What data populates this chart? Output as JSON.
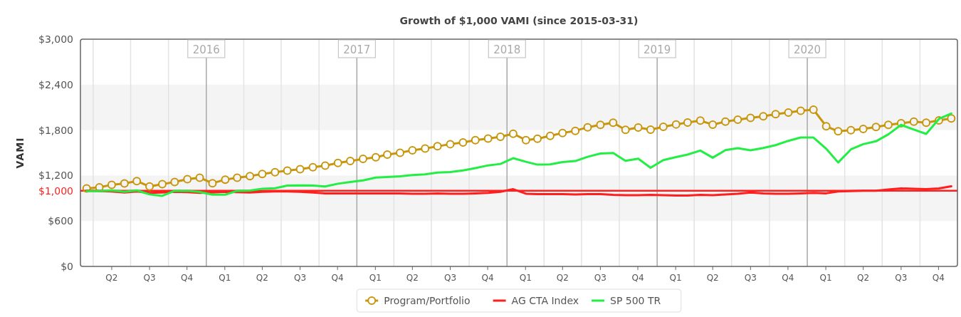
{
  "chart_data": {
    "type": "line",
    "title": "Growth of $1,000 VAMI (since 2015-03-31)",
    "ylabel": "VAMI",
    "x": [
      "2015-03-16",
      "2015-04-16",
      "2015-05-16",
      "2015-06-16",
      "2015-07-16",
      "2015-08-16",
      "2015-09-16",
      "2015-10-16",
      "2015-11-16",
      "2015-12-16",
      "2016-01-16",
      "2016-02-16",
      "2016-03-16",
      "2016-04-16",
      "2016-05-16",
      "2016-06-16",
      "2016-07-16",
      "2016-08-16",
      "2016-09-16",
      "2016-10-16",
      "2016-11-16",
      "2016-12-16",
      "2017-01-16",
      "2017-02-16",
      "2017-03-16",
      "2017-04-16",
      "2017-05-16",
      "2017-06-16",
      "2017-07-16",
      "2017-08-16",
      "2017-09-16",
      "2017-10-16",
      "2017-11-16",
      "2017-12-16",
      "2018-01-16",
      "2018-02-16",
      "2018-03-16",
      "2018-04-16",
      "2018-05-16",
      "2018-06-16",
      "2018-07-16",
      "2018-08-16",
      "2018-09-16",
      "2018-10-16",
      "2018-11-16",
      "2018-12-16",
      "2019-01-16",
      "2019-02-16",
      "2019-03-16",
      "2019-04-16",
      "2019-05-16",
      "2019-06-16",
      "2019-07-16",
      "2019-08-16",
      "2019-09-16",
      "2019-10-16",
      "2019-11-16",
      "2019-12-16",
      "2020-01-16",
      "2020-02-16",
      "2020-03-16",
      "2020-04-16",
      "2020-05-16",
      "2020-06-16",
      "2020-07-16",
      "2020-08-16",
      "2020-09-16",
      "2020-10-16",
      "2020-11-16",
      "2020-12-16"
    ],
    "series": [
      {
        "name": "Program/Portfolio",
        "color": "#c8960c",
        "marker": "circle",
        "values": [
          1030,
          1045,
          1077,
          1096,
          1127,
          1055,
          1086,
          1114,
          1152,
          1171,
          1099,
          1146,
          1171,
          1193,
          1221,
          1243,
          1265,
          1284,
          1309,
          1331,
          1366,
          1391,
          1419,
          1441,
          1476,
          1501,
          1532,
          1557,
          1586,
          1614,
          1636,
          1667,
          1689,
          1711,
          1752,
          1667,
          1686,
          1724,
          1762,
          1790,
          1837,
          1869,
          1897,
          1803,
          1834,
          1806,
          1843,
          1875,
          1900,
          1925,
          1872,
          1912,
          1938,
          1960,
          1982,
          2010,
          2032,
          2054,
          2070,
          1850,
          1784,
          1799,
          1815,
          1840,
          1869,
          1891,
          1912,
          1897,
          1928,
          1953
        ]
      },
      {
        "name": "AG CTA Index",
        "color": "#ff1f1f",
        "marker": "none",
        "values": [
          1000,
          995,
          990,
          975,
          990,
          970,
          975,
          985,
          980,
          970,
          975,
          985,
          980,
          975,
          985,
          990,
          990,
          985,
          975,
          965,
          965,
          965,
          965,
          965,
          965,
          965,
          960,
          960,
          965,
          960,
          960,
          965,
          970,
          985,
          1020,
          960,
          955,
          955,
          955,
          950,
          955,
          955,
          945,
          940,
          940,
          945,
          940,
          935,
          935,
          945,
          940,
          950,
          960,
          975,
          965,
          960,
          960,
          965,
          970,
          965,
          990,
          995,
          1000,
          1000,
          1015,
          1030,
          1025,
          1020,
          1030,
          1058
        ]
      },
      {
        "name": "SP 500 TR",
        "color": "#22ee44",
        "marker": "none",
        "values": [
          995,
          995,
          1004,
          986,
          1004,
          951,
          932,
          998,
          998,
          982,
          948,
          948,
          998,
          1001,
          1026,
          1033,
          1067,
          1070,
          1067,
          1055,
          1092,
          1114,
          1136,
          1174,
          1180,
          1190,
          1206,
          1215,
          1240,
          1246,
          1268,
          1297,
          1334,
          1353,
          1429,
          1381,
          1344,
          1347,
          1378,
          1391,
          1447,
          1491,
          1498,
          1394,
          1422,
          1303,
          1403,
          1444,
          1476,
          1529,
          1435,
          1535,
          1561,
          1532,
          1564,
          1601,
          1658,
          1702,
          1702,
          1554,
          1372,
          1545,
          1614,
          1652,
          1743,
          1869,
          1806,
          1749,
          1947,
          2019
        ]
      }
    ],
    "xlim": [
      "2015-03-01",
      "2020-12-31"
    ],
    "xticks": [
      {
        "value": "2015-05-16",
        "label": "Q2"
      },
      {
        "value": "2015-08-16",
        "label": "Q3"
      },
      {
        "value": "2015-11-15",
        "label": "Q4"
      },
      {
        "value": "2016-02-15",
        "label": "Q1"
      },
      {
        "value": "2016-05-16",
        "label": "Q2"
      },
      {
        "value": "2016-08-16",
        "label": "Q3"
      },
      {
        "value": "2016-11-15",
        "label": "Q4"
      },
      {
        "value": "2017-02-15",
        "label": "Q1"
      },
      {
        "value": "2017-05-16",
        "label": "Q2"
      },
      {
        "value": "2017-08-16",
        "label": "Q3"
      },
      {
        "value": "2017-11-15",
        "label": "Q4"
      },
      {
        "value": "2018-02-15",
        "label": "Q1"
      },
      {
        "value": "2018-05-16",
        "label": "Q2"
      },
      {
        "value": "2018-08-16",
        "label": "Q3"
      },
      {
        "value": "2018-11-15",
        "label": "Q4"
      },
      {
        "value": "2019-02-15",
        "label": "Q1"
      },
      {
        "value": "2019-05-16",
        "label": "Q2"
      },
      {
        "value": "2019-08-16",
        "label": "Q3"
      },
      {
        "value": "2019-11-15",
        "label": "Q4"
      },
      {
        "value": "2020-02-15",
        "label": "Q1"
      },
      {
        "value": "2020-05-16",
        "label": "Q2"
      },
      {
        "value": "2020-08-16",
        "label": "Q3"
      },
      {
        "value": "2020-11-15",
        "label": "Q4"
      }
    ],
    "x2lim": [
      "2015-03-01",
      "2020-12-31"
    ],
    "x2ticks": [
      {
        "value": "2015-04-01",
        "label": null
      },
      {
        "value": "2015-07-01",
        "label": null
      },
      {
        "value": "2015-10-01",
        "label": null
      },
      {
        "value": "2016-01-01",
        "label": "2016"
      },
      {
        "value": "2016-04-01",
        "label": null
      },
      {
        "value": "2016-07-01",
        "label": null
      },
      {
        "value": "2016-10-01",
        "label": null
      },
      {
        "value": "2017-01-01",
        "label": "2017"
      },
      {
        "value": "2017-04-01",
        "label": null
      },
      {
        "value": "2017-07-01",
        "label": null
      },
      {
        "value": "2017-10-01",
        "label": null
      },
      {
        "value": "2018-01-01",
        "label": "2018"
      },
      {
        "value": "2018-04-01",
        "label": null
      },
      {
        "value": "2018-07-01",
        "label": null
      },
      {
        "value": "2018-10-01",
        "label": null
      },
      {
        "value": "2019-01-01",
        "label": "2019"
      },
      {
        "value": "2019-04-01",
        "label": null
      },
      {
        "value": "2019-07-01",
        "label": null
      },
      {
        "value": "2019-10-01",
        "label": null
      },
      {
        "value": "2020-01-01",
        "label": "2020"
      },
      {
        "value": "2020-04-01",
        "label": null
      },
      {
        "value": "2020-07-01",
        "label": null
      },
      {
        "value": "2020-10-01",
        "label": null
      }
    ],
    "ylim": [
      0,
      3000
    ],
    "yticks": [
      {
        "value": 0,
        "label": "$0"
      },
      {
        "value": 600,
        "label": "$600"
      },
      {
        "value": 1200,
        "label": "$1,200"
      },
      {
        "value": 1800,
        "label": "$1,800"
      },
      {
        "value": 2400,
        "label": "$2,400"
      },
      {
        "value": 3000,
        "label": "$3,000"
      }
    ],
    "bands": [
      {
        "axis": "y",
        "from": 600,
        "to": 1200,
        "color": "#f4f4f4"
      },
      {
        "axis": "y",
        "from": 1800,
        "to": 2400,
        "color": "#f4f4f4"
      }
    ],
    "ref_lines": [
      {
        "axis": "y",
        "value": 1000,
        "label": "$1,000",
        "color": "#ff1f1f"
      }
    ],
    "grid": "x",
    "legend": "bottom",
    "line_style": "solid"
  }
}
